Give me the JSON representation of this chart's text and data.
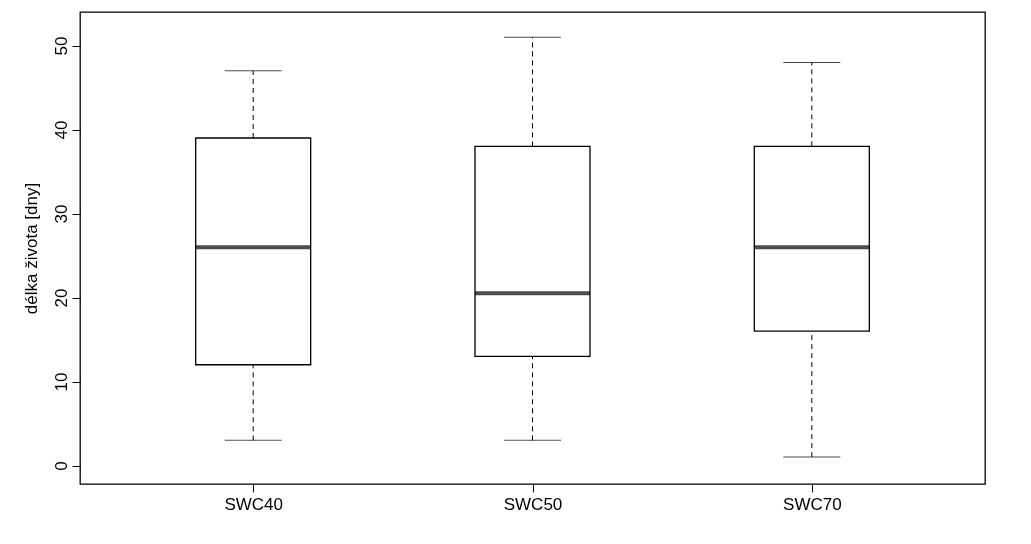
{
  "chart_data": {
    "type": "box",
    "ylabel": "délka života [dny]",
    "categories": [
      "SWC40",
      "SWC50",
      "SWC70"
    ],
    "boxes": [
      {
        "low": 3,
        "q1": 12,
        "median": 26,
        "q3": 39,
        "high": 47
      },
      {
        "low": 3,
        "q1": 13,
        "median": 20.5,
        "q3": 38,
        "high": 51
      },
      {
        "low": 1,
        "q1": 16,
        "median": 26,
        "q3": 38,
        "high": 48
      }
    ],
    "ylim": [
      -2.2,
      54
    ],
    "yticks": [
      0,
      10,
      20,
      30,
      40,
      50
    ],
    "grid": false
  }
}
